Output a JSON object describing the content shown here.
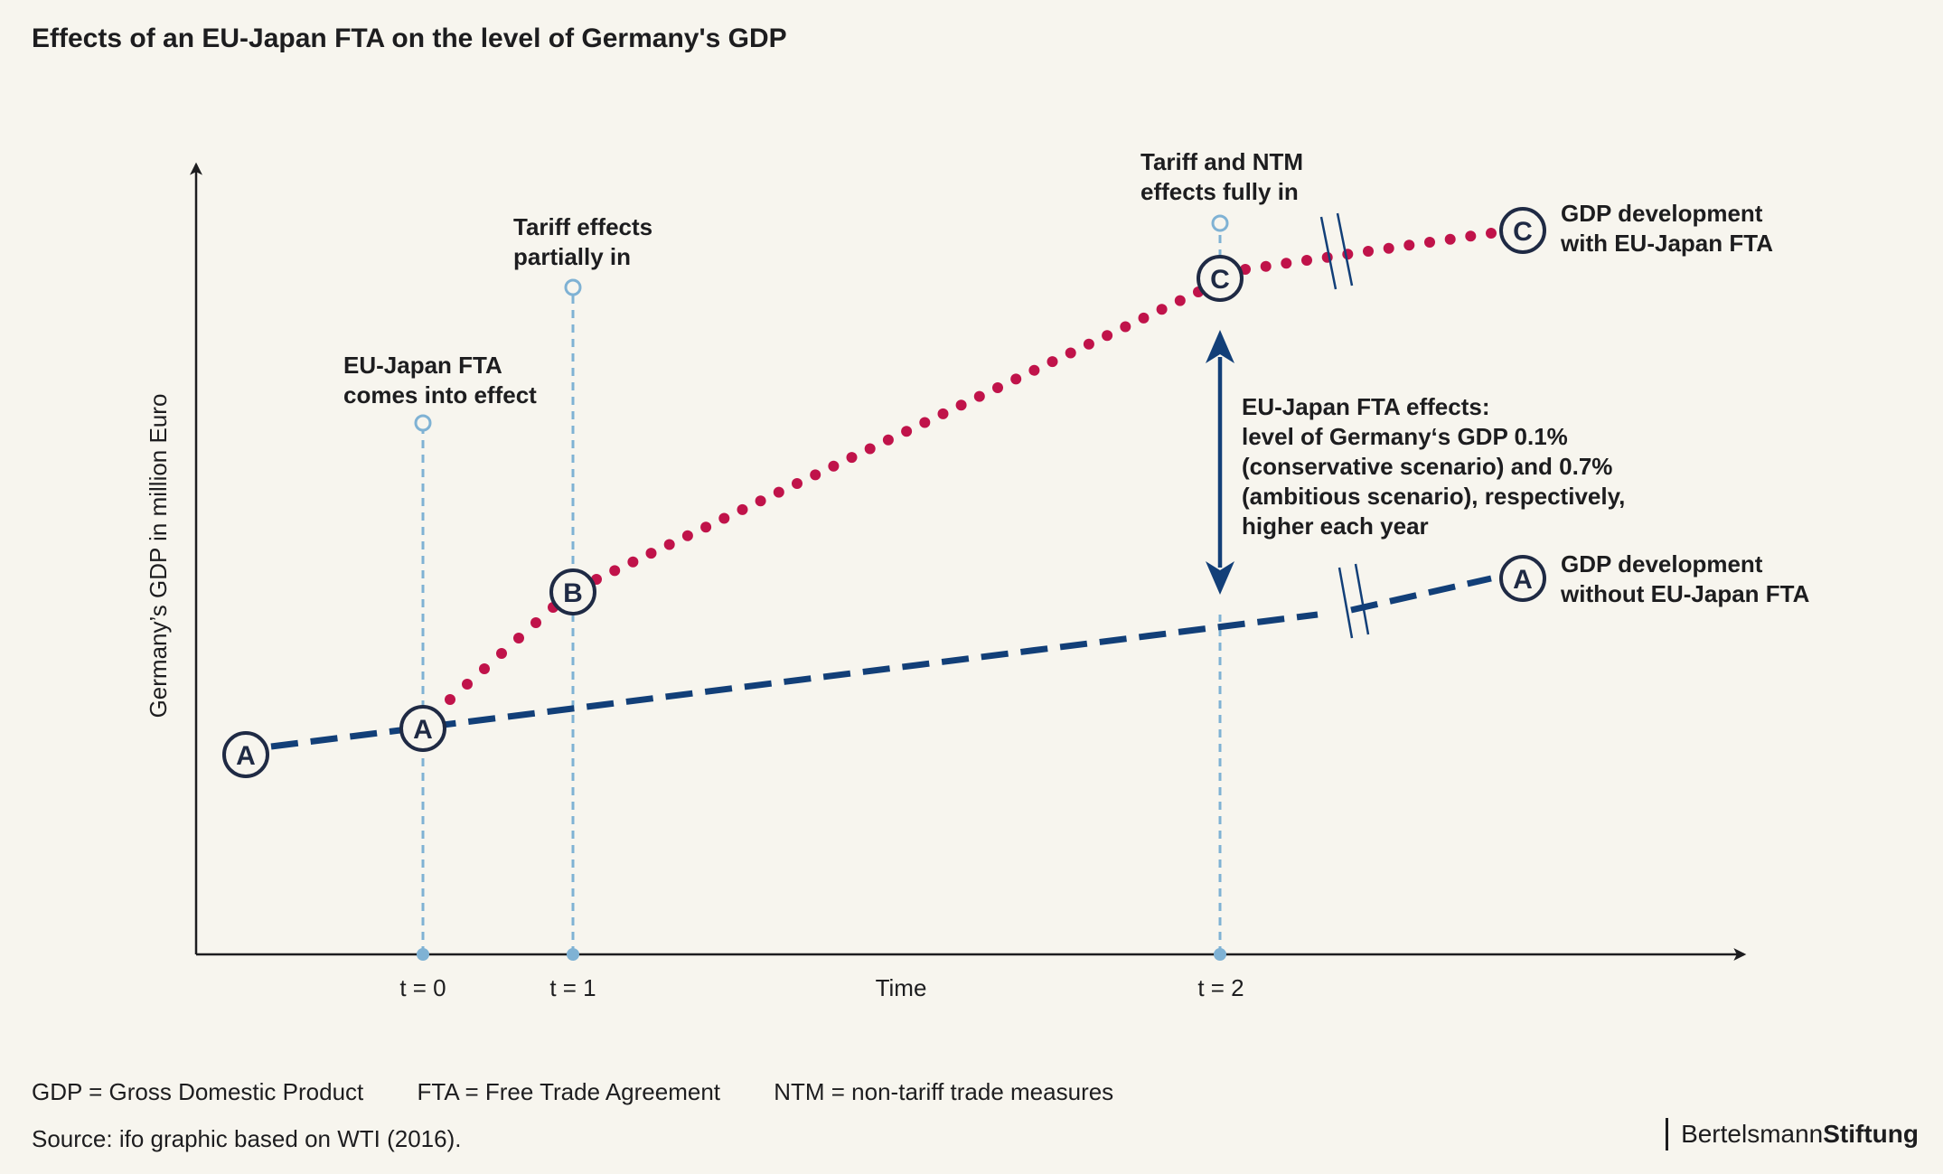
{
  "title": "Effects of an EU-Japan FTA on the level of Germany's GDP",
  "axes": {
    "y_label": "Germany’s GDP in million Euro",
    "x_label": "Time",
    "ticks": [
      "t = 0",
      "t = 1",
      "t = 2"
    ]
  },
  "events": [
    {
      "tick": "t = 0",
      "label_lines": [
        "EU-Japan FTA",
        "comes into effect"
      ]
    },
    {
      "tick": "t = 1",
      "label_lines": [
        "Tariff effects",
        "partially in"
      ]
    },
    {
      "tick": "t = 2",
      "label_lines": [
        "Tariff and NTM",
        "effects fully in"
      ]
    }
  ],
  "lines": {
    "with_fta": {
      "label_lines": [
        "GDP development",
        "with EU-Japan FTA"
      ],
      "style": "dotted",
      "color": "#c0134a"
    },
    "without_fta": {
      "label_lines": [
        "GDP development",
        "without EU-Japan FTA"
      ],
      "style": "dashed",
      "color": "#123f78"
    }
  },
  "markers": {
    "A": "A",
    "B": "B",
    "C": "C"
  },
  "effects_note_lines": [
    "EU-Japan FTA effects:",
    "level of Germany‘s GDP 0.1%",
    "(conservative scenario) and 0.7%",
    "(ambitious  scenario), respectively,",
    "higher each year"
  ],
  "footnotes": [
    "GDP = Gross Domestic Product",
    "FTA = Free Trade Agreement",
    "NTM = non-tariff trade measures"
  ],
  "source": "Source: ifo graphic based on WTI (2016).",
  "brand": {
    "part1": "Bertelsmann",
    "part2": "Stiftung"
  },
  "colors": {
    "background": "#f7f5ee",
    "navy": "#123f78",
    "crimson": "#c0134a",
    "guide_blue": "#7fb2d4",
    "axis": "#1d1d1f"
  }
}
